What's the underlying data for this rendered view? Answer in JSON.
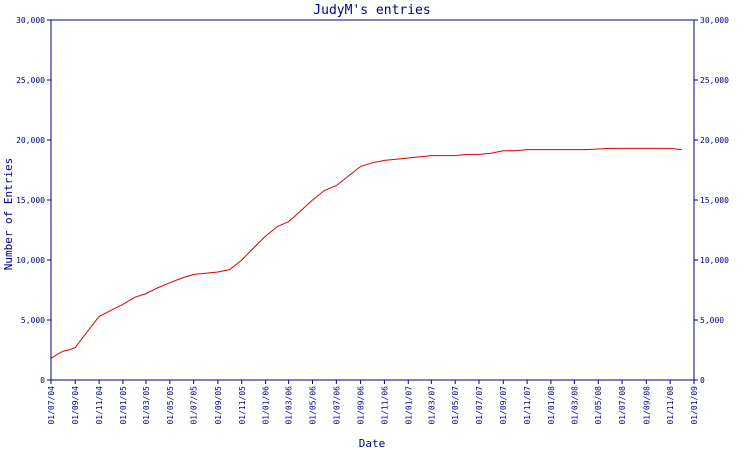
{
  "chart_data": {
    "type": "line",
    "title": "JudyM's entries",
    "xlabel": "Date",
    "ylabel": "Number of Entries",
    "ylim": [
      0,
      30000
    ],
    "yticks": [
      0,
      5000,
      10000,
      15000,
      20000,
      25000,
      30000
    ],
    "ytick_labels": [
      "0",
      "5,000",
      "10,000",
      "15,000",
      "20,000",
      "25,000",
      "30,000"
    ],
    "xlim": [
      "2004-07-01",
      "2009-01-01"
    ],
    "xtick_labels": [
      "01/07/04",
      "01/09/04",
      "01/11/04",
      "01/01/05",
      "01/03/05",
      "01/05/05",
      "01/07/05",
      "01/09/05",
      "01/11/05",
      "01/01/06",
      "01/03/06",
      "01/05/06",
      "01/07/06",
      "01/09/06",
      "01/11/06",
      "01/01/07",
      "01/03/07",
      "01/05/07",
      "01/07/07",
      "01/09/07",
      "01/11/07",
      "01/01/08",
      "01/03/08",
      "01/05/08",
      "01/07/08",
      "01/09/08",
      "01/11/08",
      "01/01/09"
    ],
    "grid": false,
    "line_color": "#dd0000",
    "axis_color": "#000080",
    "series": [
      {
        "x": [
          "2004-07-01",
          "2004-07-15",
          "2004-08-01",
          "2004-08-15",
          "2004-09-01",
          "2004-10-01",
          "2004-11-01",
          "2004-12-01",
          "2005-01-01",
          "2005-02-01",
          "2005-03-01",
          "2005-04-01",
          "2005-05-01",
          "2005-06-01",
          "2005-07-01",
          "2005-08-01",
          "2005-09-01",
          "2005-10-01",
          "2005-11-01",
          "2005-12-01",
          "2006-01-01",
          "2006-02-01",
          "2006-03-01",
          "2006-04-01",
          "2006-05-01",
          "2006-06-01",
          "2006-07-01",
          "2006-08-01",
          "2006-09-01",
          "2006-10-01",
          "2006-11-01",
          "2006-12-01",
          "2007-01-01",
          "2007-02-01",
          "2007-03-01",
          "2007-04-01",
          "2007-05-01",
          "2007-06-01",
          "2007-07-01",
          "2007-08-01",
          "2007-09-01",
          "2007-10-01",
          "2007-11-01",
          "2007-12-01",
          "2008-01-01",
          "2008-02-01",
          "2008-03-01",
          "2008-04-01",
          "2008-05-01",
          "2008-06-01",
          "2008-07-01",
          "2008-08-01",
          "2008-09-01",
          "2008-10-01",
          "2008-11-01",
          "2008-12-01"
        ],
        "values": [
          1800,
          2100,
          2400,
          2500,
          2700,
          4000,
          5300,
          5800,
          6300,
          6900,
          7200,
          7700,
          8100,
          8500,
          8800,
          8900,
          9000,
          9200,
          10000,
          11000,
          12000,
          12800,
          13200,
          14100,
          15000,
          15800,
          16200,
          17000,
          17800,
          18100,
          18300,
          18400,
          18500,
          18600,
          18700,
          18700,
          18700,
          18800,
          18800,
          18900,
          19100,
          19100,
          19200,
          19200,
          19200,
          19200,
          19200,
          19200,
          19250,
          19300,
          19300,
          19300,
          19300,
          19300,
          19300,
          19200
        ]
      }
    ]
  }
}
